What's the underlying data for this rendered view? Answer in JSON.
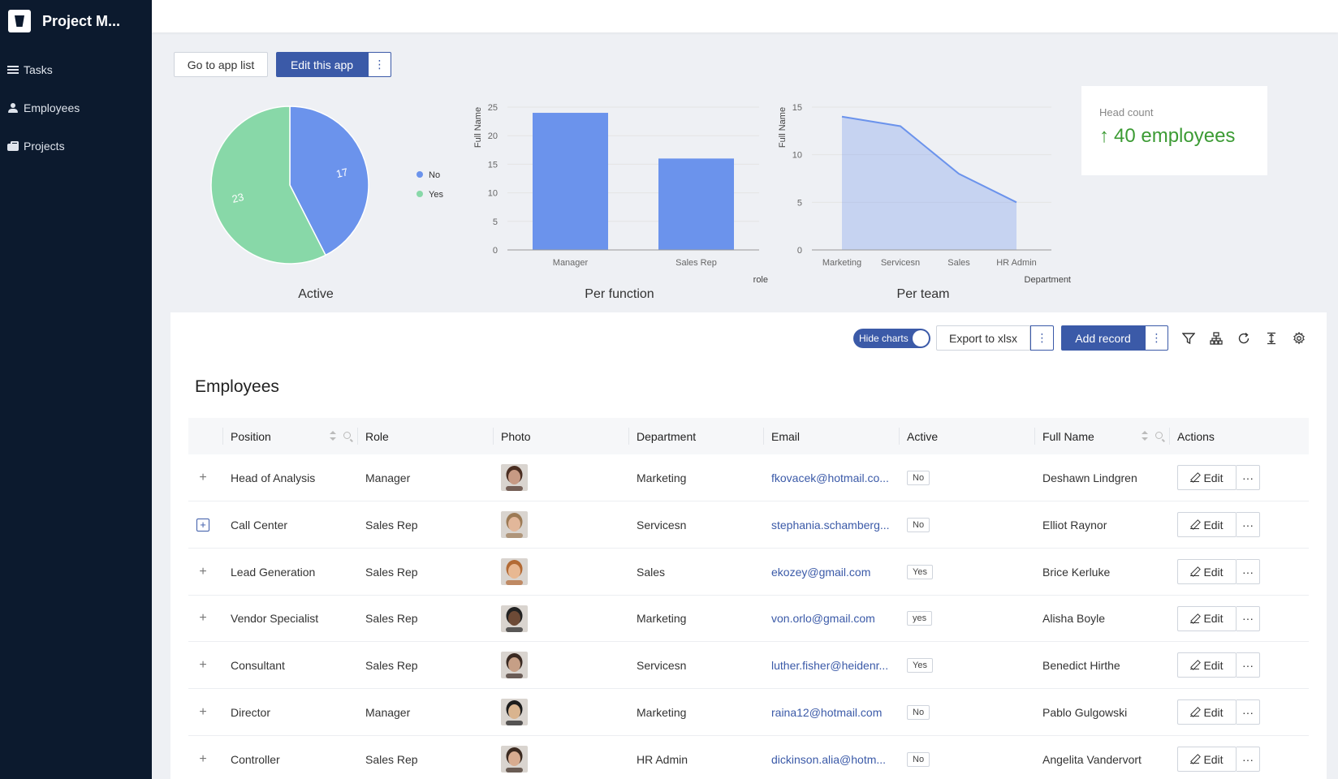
{
  "app": {
    "title": "Project M..."
  },
  "sidebar": {
    "items": [
      {
        "label": "Tasks",
        "icon": "list-icon"
      },
      {
        "label": "Employees",
        "icon": "users-icon"
      },
      {
        "label": "Projects",
        "icon": "briefcase-icon"
      }
    ]
  },
  "toolbar": {
    "go_to_app_list": "Go to app list",
    "edit_this_app": "Edit this app",
    "more": "⋮"
  },
  "charts": {
    "active_title": "Active",
    "per_function_title": "Per function",
    "per_team_title": "Per team"
  },
  "chart_data": [
    {
      "type": "pie",
      "title": "Active",
      "labels": [
        "No",
        "Yes"
      ],
      "values": [
        17,
        23
      ],
      "colors": [
        "#6b93ec",
        "#88d8a8"
      ],
      "legend": "right"
    },
    {
      "type": "bar",
      "title": "Per function",
      "categories": [
        "Manager",
        "Sales Rep"
      ],
      "values": [
        24,
        16
      ],
      "xlabel": "role",
      "ylabel": "Full Name",
      "ylim": [
        0,
        25
      ],
      "yticks": [
        0,
        5,
        10,
        15,
        20,
        25
      ],
      "color": "#6b93ec"
    },
    {
      "type": "area",
      "title": "Per team",
      "categories": [
        "Marketing",
        "Servicesn",
        "Sales",
        "HR Admin"
      ],
      "values": [
        14,
        13,
        8,
        5
      ],
      "xlabel": "Department",
      "ylabel": "Full Name",
      "ylim": [
        0,
        15
      ],
      "yticks": [
        0,
        5,
        10,
        15
      ],
      "color": "#6b93ec"
    }
  ],
  "headcount": {
    "label": "Head count",
    "value": "40 employees",
    "arrow": "↑"
  },
  "table_toolbar": {
    "hide_charts": "Hide charts",
    "export": "Export to xlsx",
    "add_record": "Add record",
    "more": "⋮"
  },
  "table": {
    "title": "Employees",
    "columns": [
      "Position",
      "Role",
      "Photo",
      "Department",
      "Email",
      "Active",
      "Full Name",
      "Actions"
    ],
    "edit_label": "Edit",
    "more_label": "···",
    "rows": [
      {
        "position": "Head of Analysis",
        "role": "Manager",
        "department": "Marketing",
        "email": "fkovacek@hotmail.co...",
        "active": "No",
        "full_name": "Deshawn Lindgren",
        "skin": "#c79a84",
        "hair": "#4a2e22"
      },
      {
        "position": "Call Center",
        "role": "Sales Rep",
        "department": "Servicesn",
        "email": "stephania.schamberg...",
        "active": "No",
        "full_name": "Elliot Raynor",
        "skin": "#e2b79a",
        "hair": "#9c7a55"
      },
      {
        "position": "Lead Generation",
        "role": "Sales Rep",
        "department": "Sales",
        "email": "ekozey@gmail.com",
        "active": "Yes",
        "full_name": "Brice Kerluke",
        "skin": "#e8b892",
        "hair": "#b36a34"
      },
      {
        "position": "Vendor Specialist",
        "role": "Sales Rep",
        "department": "Marketing",
        "email": "von.orlo@gmail.com",
        "active": "yes",
        "full_name": "Alisha Boyle",
        "skin": "#6d4a36",
        "hair": "#222222"
      },
      {
        "position": "Consultant",
        "role": "Sales Rep",
        "department": "Servicesn",
        "email": "luther.fisher@heidenr...",
        "active": "Yes",
        "full_name": "Benedict Hirthe",
        "skin": "#c69f86",
        "hair": "#3a2a22"
      },
      {
        "position": "Director",
        "role": "Manager",
        "department": "Marketing",
        "email": "raina12@hotmail.com",
        "active": "No",
        "full_name": "Pablo Gulgowski",
        "skin": "#d9b48f",
        "hair": "#1c1c1c"
      },
      {
        "position": "Controller",
        "role": "Sales Rep",
        "department": "HR Admin",
        "email": "dickinson.alia@hotm...",
        "active": "No",
        "full_name": "Angelita Vandervort",
        "skin": "#d8ac90",
        "hair": "#3b2a20"
      }
    ]
  }
}
